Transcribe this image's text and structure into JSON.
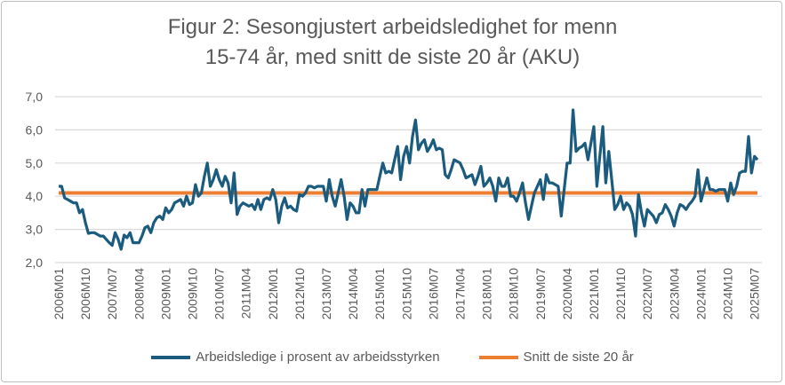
{
  "chart_data": {
    "type": "line",
    "title_line1": "Figur 2: Sesongjustert arbeidsledighet for menn",
    "title_line2": "15-74 år, med snitt de siste 20 år (AKU)",
    "start": "2006M01",
    "frequency": "monthly",
    "ylim": [
      2.0,
      7.0
    ],
    "yticks": [
      "2,0",
      "3,0",
      "4,0",
      "5,0",
      "6,0",
      "7,0"
    ],
    "ytick_values": [
      2,
      3,
      4,
      5,
      6,
      7
    ],
    "grid": true,
    "legend_position": "bottom",
    "xtick_every_months": 9,
    "xticks": [
      "2006M01",
      "2006M10",
      "2007M07",
      "2008M04",
      "2009M01",
      "2009M10",
      "2010M07",
      "2011M04",
      "2012M01",
      "2012M10",
      "2013M07",
      "2014M04",
      "2015M01",
      "2015M10",
      "2016M07",
      "2017M04",
      "2018M01",
      "2018M10",
      "2019M07",
      "2020M04",
      "2021M01",
      "2021M10",
      "2022M07",
      "2023M04",
      "2024M01",
      "2024M10",
      "2025M07"
    ],
    "series": [
      {
        "name": "Arbeidsledige i prosent av arbeidsstyrken",
        "color": "#1a5b7e",
        "values": [
          4.3,
          4.3,
          3.95,
          3.9,
          3.85,
          3.8,
          3.8,
          3.5,
          3.6,
          3.2,
          2.88,
          2.9,
          2.9,
          2.85,
          2.8,
          2.8,
          2.7,
          2.6,
          2.52,
          2.9,
          2.7,
          2.4,
          2.83,
          2.75,
          2.9,
          2.6,
          2.6,
          2.6,
          2.8,
          3.05,
          3.1,
          2.9,
          3.2,
          3.35,
          3.4,
          3.3,
          3.65,
          3.5,
          3.6,
          3.8,
          3.85,
          3.9,
          3.7,
          4.0,
          3.75,
          3.8,
          4.35,
          4.0,
          4.1,
          4.6,
          5.0,
          4.3,
          4.5,
          4.8,
          4.5,
          4.3,
          4.6,
          4.4,
          3.8,
          4.7,
          3.45,
          3.7,
          3.8,
          3.75,
          3.7,
          3.75,
          3.6,
          3.9,
          3.6,
          3.9,
          3.95,
          3.9,
          4.2,
          3.9,
          3.2,
          3.7,
          3.95,
          3.65,
          3.7,
          3.6,
          3.55,
          4.05,
          4.0,
          4.1,
          4.3,
          4.3,
          4.25,
          4.3,
          4.3,
          4.3,
          3.85,
          4.5,
          4.0,
          3.7,
          4.1,
          4.5,
          4.0,
          3.3,
          3.8,
          3.7,
          3.5,
          3.5,
          4.2,
          3.7,
          4.2,
          4.2,
          4.2,
          4.2,
          4.6,
          5.0,
          4.7,
          4.75,
          4.7,
          5.1,
          5.5,
          4.5,
          5.2,
          5.5,
          5.0,
          5.8,
          6.3,
          5.4,
          5.6,
          5.7,
          5.35,
          5.5,
          5.7,
          5.4,
          5.45,
          5.4,
          4.65,
          4.55,
          4.8,
          5.1,
          5.05,
          5.0,
          4.8,
          4.55,
          4.6,
          4.65,
          4.35,
          4.6,
          4.9,
          4.3,
          4.4,
          4.55,
          4.3,
          3.85,
          4.55,
          4.3,
          4.3,
          4.55,
          4.0,
          4.0,
          3.85,
          4.1,
          4.4,
          3.8,
          3.3,
          3.7,
          4.1,
          4.3,
          4.5,
          3.9,
          4.65,
          4.4,
          4.4,
          4.35,
          4.3,
          3.4,
          4.2,
          5.0,
          5.0,
          6.6,
          5.35,
          5.45,
          5.5,
          5.6,
          5.1,
          5.6,
          6.1,
          4.3,
          5.2,
          6.1,
          4.4,
          5.35,
          4.5,
          3.6,
          3.75,
          4.0,
          3.6,
          3.8,
          3.7,
          3.45,
          2.8,
          4.05,
          3.5,
          3.1,
          3.6,
          3.5,
          3.4,
          3.2,
          3.45,
          3.5,
          3.75,
          3.6,
          3.4,
          3.1,
          3.5,
          3.75,
          3.7,
          3.6,
          3.75,
          3.85,
          4.0,
          4.8,
          3.85,
          4.2,
          4.55,
          4.2,
          4.2,
          4.15,
          4.2,
          4.2,
          4.2,
          3.85,
          4.4,
          4.05,
          4.3,
          4.7,
          4.75,
          4.75,
          5.8,
          4.7,
          5.2,
          5.1
        ]
      },
      {
        "name": "Snitt de siste 20 år",
        "color": "#ed7d31",
        "constant": 4.1
      }
    ]
  }
}
